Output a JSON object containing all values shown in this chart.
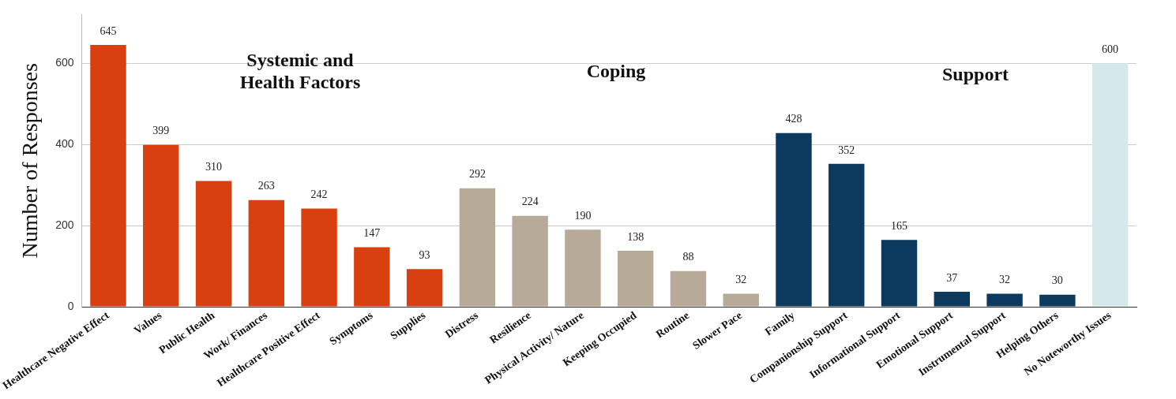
{
  "chart_data": {
    "type": "bar",
    "ylabel": "Number of Responses",
    "categories": [
      "Healthcare Negative Effect",
      "Values",
      "Public Health",
      "Work/ Finances",
      "Healthcare Positive Effect",
      "Symptoms",
      "Supplies",
      "Distress",
      "Resilience",
      "Physical Activity/ Nature",
      "Keeping Occupied",
      "Routine",
      "Slower Pace",
      "Family",
      "Companionship Support",
      "Informational Support",
      "Emotional Support",
      "Instrumental Support",
      "Helping Others",
      "No Noteworthy Issues"
    ],
    "values": [
      645,
      399,
      310,
      263,
      242,
      147,
      93,
      292,
      224,
      190,
      138,
      88,
      32,
      428,
      352,
      165,
      37,
      32,
      30,
      600
    ],
    "colors": [
      "#d9400f",
      "#d9400f",
      "#d9400f",
      "#d9400f",
      "#d9400f",
      "#d9400f",
      "#d9400f",
      "#b8aa98",
      "#b8aa98",
      "#b8aa98",
      "#b8aa98",
      "#b8aa98",
      "#b8aa98",
      "#0c3a5e",
      "#0c3a5e",
      "#0c3a5e",
      "#0c3a5e",
      "#0c3a5e",
      "#0c3a5e",
      "#d6e8ec"
    ],
    "ylim": [
      0,
      720
    ],
    "yticks": [
      0,
      200,
      400,
      600
    ],
    "grid": "y",
    "data_labels": true,
    "annotations": [
      "Systemic and Health Factors",
      "Coping",
      "Support"
    ]
  }
}
